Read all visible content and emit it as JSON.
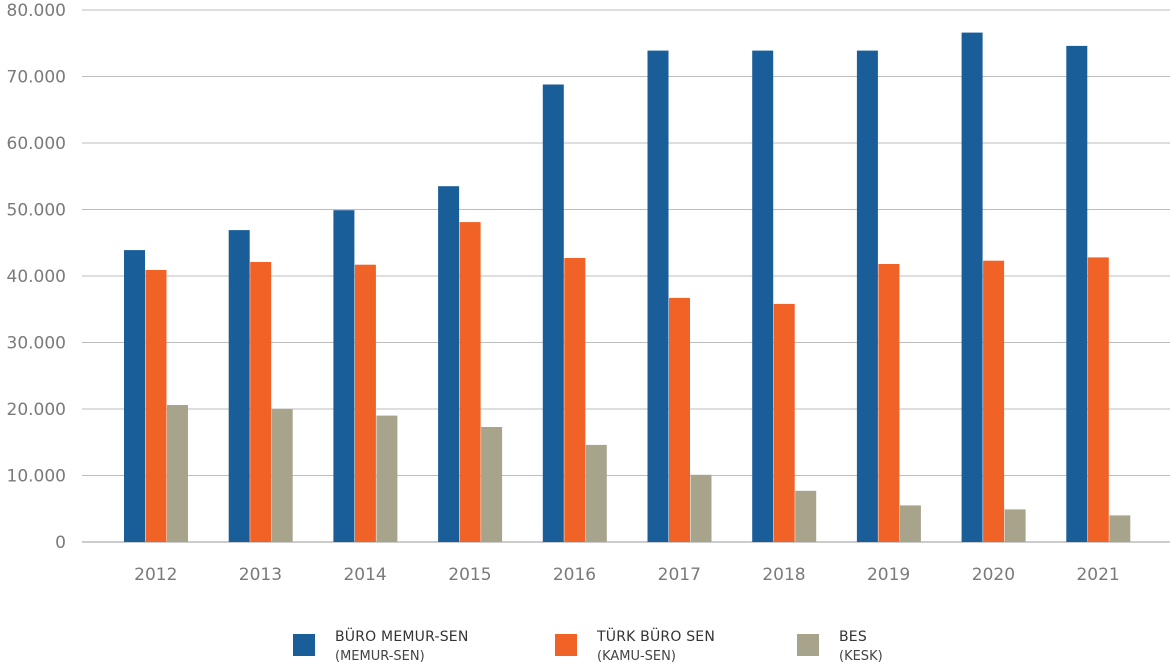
{
  "chart_data": {
    "type": "bar",
    "categories": [
      "2012",
      "2013",
      "2014",
      "2015",
      "2016",
      "2017",
      "2018",
      "2019",
      "2020",
      "2021"
    ],
    "series": [
      {
        "name": "BÜRO MEMUR-SEN",
        "subtitle": "(MEMUR-SEN)",
        "color": "#1a5e99",
        "values": [
          43900,
          46900,
          49900,
          53500,
          68800,
          73900,
          73900,
          73900,
          76600,
          74600
        ]
      },
      {
        "name": "TÜRK BÜRO SEN",
        "subtitle": "(KAMU-SEN)",
        "color": "#f06225",
        "values": [
          40900,
          42100,
          41700,
          48100,
          42700,
          36700,
          35800,
          41800,
          42300,
          42800
        ]
      },
      {
        "name": "BES",
        "subtitle": "(KESK)",
        "color": "#a8a48c",
        "values": [
          20600,
          20000,
          19000,
          17300,
          14600,
          10100,
          7700,
          5500,
          4900,
          4000
        ]
      }
    ],
    "y_ticks": [
      "0",
      "10.000",
      "20.000",
      "30.000",
      "40.000",
      "50.000",
      "60.000",
      "70.000",
      "80.000"
    ],
    "ylim": [
      0,
      80000
    ],
    "grid": true,
    "legend_position": "bottom"
  }
}
